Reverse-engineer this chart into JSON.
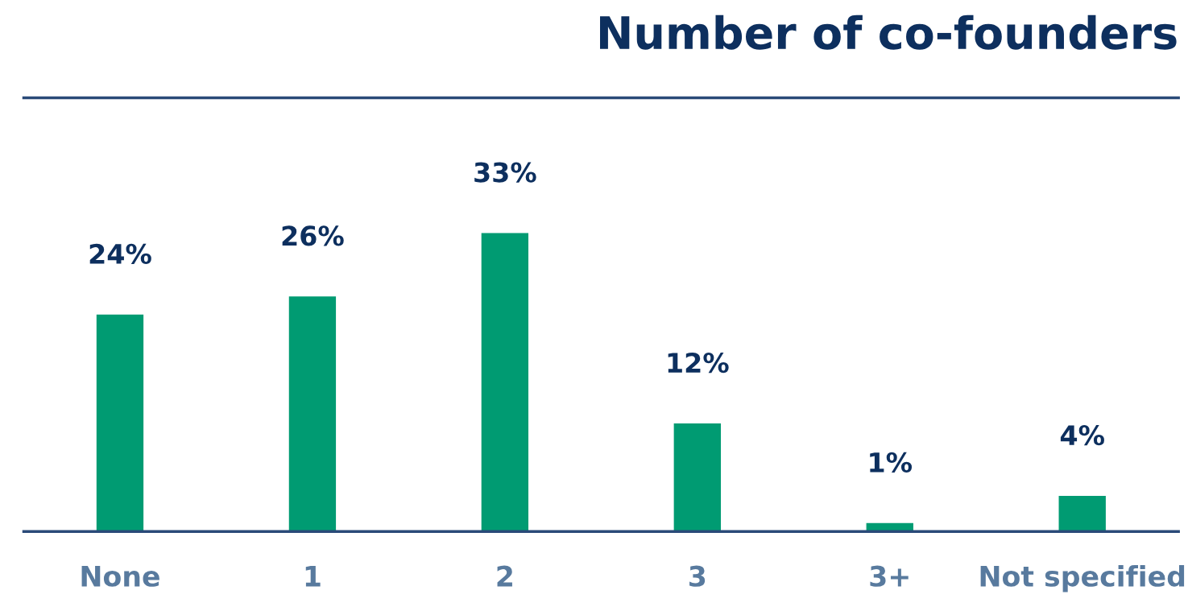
{
  "chart_data": {
    "type": "bar",
    "title": "Number of co-founders",
    "categories": [
      "None",
      "1",
      "2",
      "3",
      "3+",
      "Not specified"
    ],
    "values": [
      24,
      26,
      33,
      12,
      1,
      4
    ],
    "value_labels": [
      "24%",
      "26%",
      "33%",
      "12%",
      "1%",
      "4%"
    ],
    "color": "#009b72",
    "grid": false,
    "legend": false
  }
}
